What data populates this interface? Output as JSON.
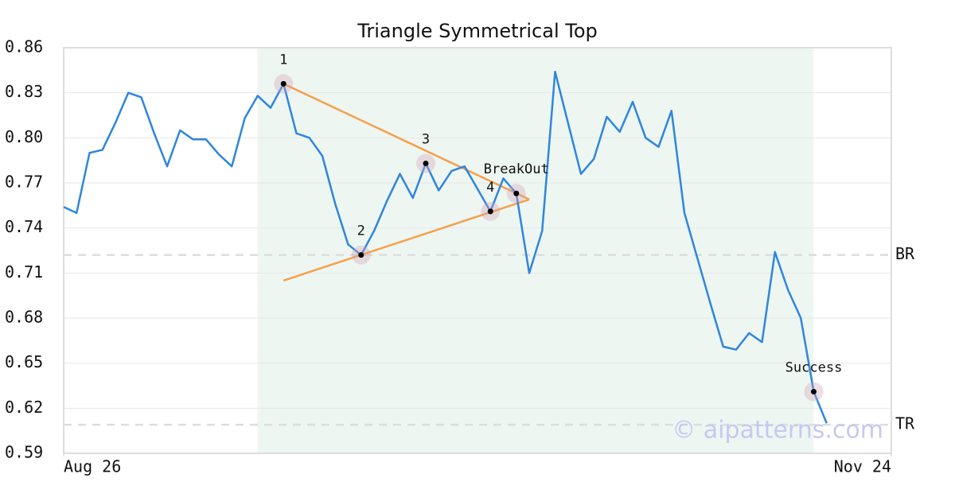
{
  "chart_data": {
    "type": "line",
    "title": "Triangle Symmetrical Top",
    "x": [
      0,
      1,
      2,
      3,
      4,
      5,
      6,
      7,
      8,
      9,
      10,
      11,
      12,
      13,
      14,
      15,
      16,
      17,
      18,
      19,
      20,
      21,
      22,
      23,
      24,
      25,
      26,
      27,
      28,
      29,
      30,
      31,
      32,
      33,
      34,
      35,
      36,
      37,
      38,
      39,
      40,
      41,
      42,
      43,
      44,
      45,
      46,
      47,
      48,
      49,
      50,
      51,
      52,
      53,
      54,
      55,
      56,
      57,
      58,
      59
    ],
    "xlim": [
      0,
      64
    ],
    "xticks": [
      {
        "value": 0,
        "label": "Aug 26"
      },
      {
        "value": 64,
        "label": "Nov 24"
      }
    ],
    "ylim": [
      0.59,
      0.86
    ],
    "yticks": [
      0.59,
      0.62,
      0.65,
      0.68,
      0.71,
      0.74,
      0.77,
      {
        "value": 0.8,
        "label": "0.80"
      },
      0.83,
      0.86
    ],
    "grid": true,
    "series": [
      {
        "color": "#2e86de",
        "values": [
          0.754,
          0.75,
          0.79,
          0.792,
          0.81,
          0.83,
          0.827,
          0.803,
          0.781,
          0.805,
          0.799,
          0.799,
          0.789,
          0.781,
          0.813,
          0.828,
          0.82,
          0.836,
          0.803,
          0.8,
          0.788,
          0.756,
          0.729,
          0.722,
          0.738,
          0.758,
          0.776,
          0.76,
          0.783,
          0.765,
          0.778,
          0.781,
          0.766,
          0.751,
          0.773,
          0.763,
          0.71,
          0.738,
          0.844,
          0.81,
          0.776,
          0.786,
          0.814,
          0.804,
          0.824,
          0.8,
          0.794,
          0.818,
          0.75,
          0.72,
          0.69,
          0.661,
          0.659,
          0.67,
          0.664,
          0.724,
          0.699,
          0.68,
          0.631,
          0.61
        ]
      }
    ],
    "shade": {
      "x": [
        15,
        58
      ],
      "color": "#eef6f2"
    },
    "trendlines": [
      {
        "x": [
          17,
          36
        ],
        "y": [
          0.836,
          0.759
        ],
        "color": "#f5a04a"
      },
      {
        "x": [
          17,
          36
        ],
        "y": [
          0.705,
          0.759
        ],
        "color": "#f5a04a"
      }
    ],
    "hlines": [
      {
        "value": 0.722,
        "label": "BR"
      },
      {
        "value": 0.609,
        "label": "TR"
      }
    ],
    "points": [
      {
        "x": 17,
        "label": "1"
      },
      {
        "x": 23,
        "label": "2"
      },
      {
        "x": 28,
        "label": "3"
      },
      {
        "x": 33,
        "label": "4"
      },
      {
        "x": 35,
        "label": "BreakOut"
      },
      {
        "x": 58,
        "label": "Success"
      }
    ],
    "watermark": "© aipatterns.com"
  }
}
